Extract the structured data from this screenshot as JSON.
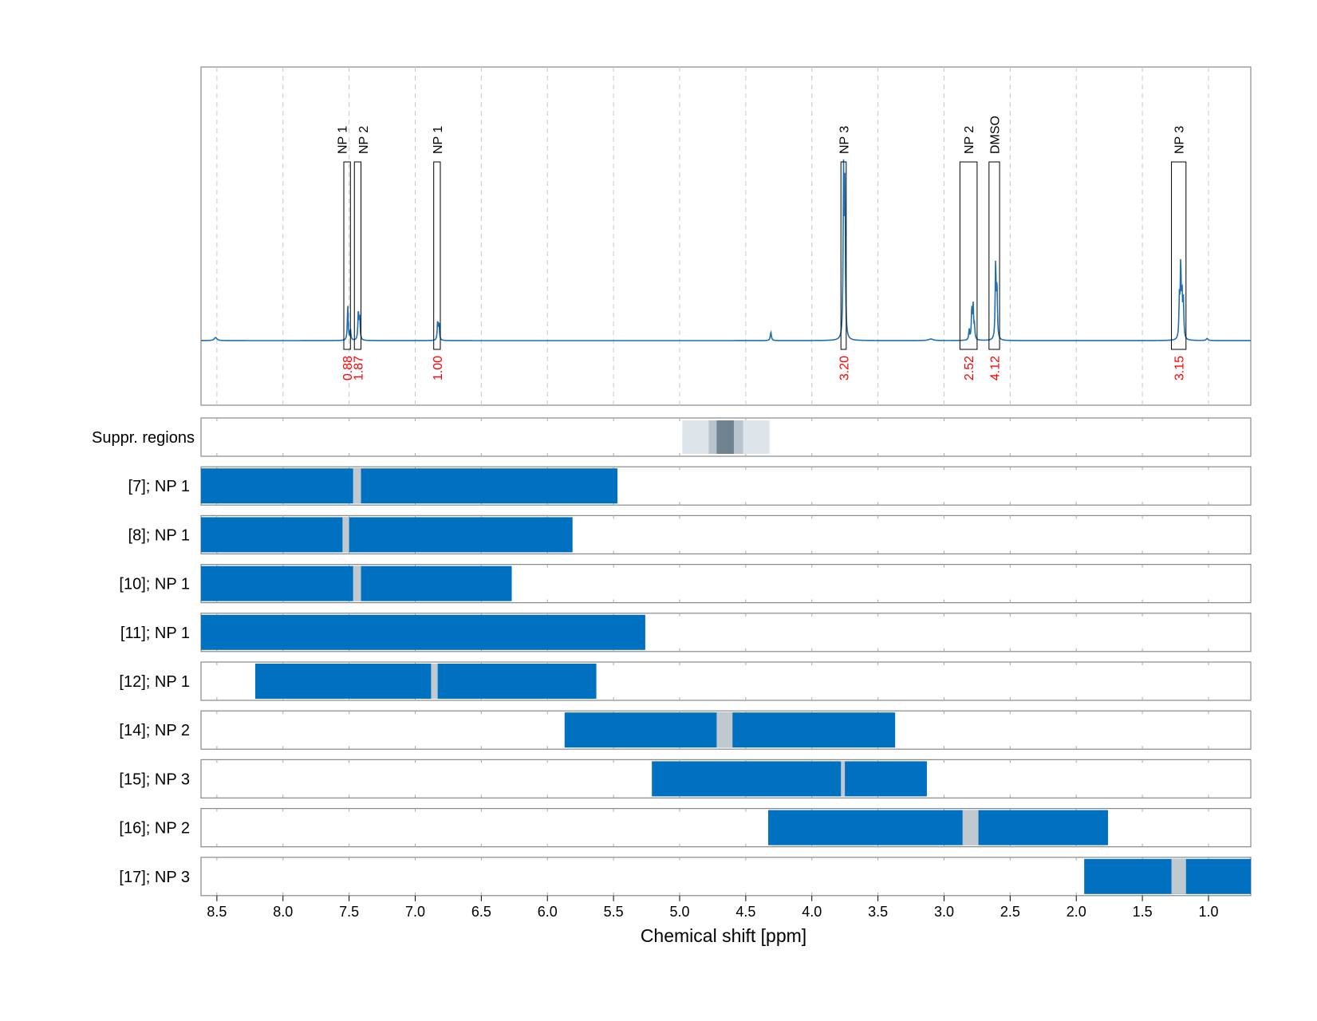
{
  "chart_data": {
    "type": "nmr_spectrum_with_range_bars",
    "xlabel": "Chemical shift [ppm]",
    "x_axis_reversed": true,
    "xlim": [
      8.62,
      0.68
    ],
    "x_ticks": [
      8.5,
      8.0,
      7.5,
      7.0,
      6.5,
      6.0,
      5.5,
      5.0,
      4.5,
      4.0,
      3.5,
      3.0,
      2.5,
      2.0,
      1.5,
      1.0
    ],
    "x_tick_labels": [
      "8.5",
      "8.0",
      "7.5",
      "7.0",
      "6.5",
      "6.0",
      "5.5",
      "5.0",
      "4.5",
      "4.0",
      "3.5",
      "3.0",
      "2.5",
      "2.0",
      "1.5",
      "1.0"
    ],
    "colors": {
      "spectrum": "#1f6fb2",
      "range_bar": "#0070c0",
      "gap": "#c0c8d0",
      "integral_text": "#ff0000",
      "suppr_light": "#dde4ea",
      "suppr_mid": "#b8c4ce",
      "suppr_dark": "#6f8391",
      "frame": "#888888",
      "grid": "#c8c8c8"
    },
    "spectrum": {
      "grid": "vertical dashed",
      "peaks": [
        {
          "ppm": 8.51,
          "height": 0.03,
          "width": 0.012
        },
        {
          "ppm": 7.51,
          "height": 0.33,
          "width": 0.004
        },
        {
          "ppm": 7.49,
          "height": 0.1,
          "width": 0.004
        },
        {
          "ppm": 7.43,
          "height": 0.28,
          "width": 0.004
        },
        {
          "ppm": 7.42,
          "height": 0.22,
          "width": 0.004
        },
        {
          "ppm": 6.83,
          "height": 0.18,
          "width": 0.004
        },
        {
          "ppm": 6.82,
          "height": 0.16,
          "width": 0.004
        },
        {
          "ppm": 4.31,
          "height": 0.08,
          "width": 0.005
        },
        {
          "ppm": 3.76,
          "height": 1.55,
          "width": 0.004
        },
        {
          "ppm": 3.75,
          "height": 1.45,
          "width": 0.004
        },
        {
          "ppm": 3.1,
          "height": 0.015,
          "width": 0.02
        },
        {
          "ppm": 2.81,
          "height": 0.1,
          "width": 0.004
        },
        {
          "ppm": 2.79,
          "height": 0.3,
          "width": 0.004
        },
        {
          "ppm": 2.78,
          "height": 0.32,
          "width": 0.004
        },
        {
          "ppm": 2.77,
          "height": 0.12,
          "width": 0.004
        },
        {
          "ppm": 2.61,
          "height": 0.73,
          "width": 0.004
        },
        {
          "ppm": 2.6,
          "height": 0.5,
          "width": 0.004
        },
        {
          "ppm": 1.22,
          "height": 0.38,
          "width": 0.004
        },
        {
          "ppm": 1.21,
          "height": 0.7,
          "width": 0.004
        },
        {
          "ppm": 1.2,
          "height": 0.4,
          "width": 0.004
        },
        {
          "ppm": 1.19,
          "height": 0.36,
          "width": 0.004
        },
        {
          "ppm": 1.01,
          "height": 0.02,
          "width": 0.008
        }
      ],
      "annotations": [
        {
          "label": "NP 1",
          "integral": "0.88",
          "start": 7.54,
          "end": 7.49,
          "label_nudge": -0.04
        },
        {
          "label": "NP 2",
          "integral": "1.87",
          "start": 7.46,
          "end": 7.41,
          "label_nudge": 0.04
        },
        {
          "label": "NP 1",
          "integral": "1.00",
          "start": 6.86,
          "end": 6.81,
          "label_nudge": 0
        },
        {
          "label": "NP 3",
          "integral": "3.20",
          "start": 3.78,
          "end": 3.74,
          "label_nudge": 0
        },
        {
          "label": "NP 2",
          "integral": "2.52",
          "start": 2.88,
          "end": 2.75,
          "label_nudge": 0
        },
        {
          "label": "DMSO",
          "integral": "4.12",
          "start": 2.66,
          "end": 2.58,
          "label_nudge": 0
        },
        {
          "label": "NP 3",
          "integral": "3.15",
          "start": 1.28,
          "end": 1.17,
          "label_nudge": 0
        }
      ]
    },
    "suppression_label": "Suppr. regions",
    "suppression_regions": [
      {
        "start": 4.98,
        "end": 4.32,
        "shade": "suppr_light"
      },
      {
        "start": 4.78,
        "end": 4.52,
        "shade": "suppr_mid"
      },
      {
        "start": 4.72,
        "end": 4.59,
        "shade": "suppr_dark"
      }
    ],
    "range_rows": [
      {
        "label": "[7]; NP 1",
        "start": 8.62,
        "end": 5.47,
        "gaps": [
          [
            7.47,
            7.41
          ]
        ]
      },
      {
        "label": "[8]; NP 1",
        "start": 8.62,
        "end": 5.81,
        "gaps": [
          [
            7.55,
            7.5
          ]
        ]
      },
      {
        "label": "[10]; NP 1",
        "start": 8.62,
        "end": 6.27,
        "gaps": [
          [
            7.47,
            7.41
          ]
        ]
      },
      {
        "label": "[11]; NP 1",
        "start": 8.62,
        "end": 5.26,
        "gaps": []
      },
      {
        "label": "[12]; NP 1",
        "start": 8.21,
        "end": 5.63,
        "gaps": [
          [
            6.88,
            6.83
          ]
        ]
      },
      {
        "label": "[14]; NP 2",
        "start": 5.87,
        "end": 3.37,
        "gaps": [
          [
            4.72,
            4.6
          ]
        ]
      },
      {
        "label": "[15]; NP 3",
        "start": 5.21,
        "end": 3.13,
        "gaps": [
          [
            3.78,
            3.75
          ]
        ]
      },
      {
        "label": "[16]; NP 2",
        "start": 4.33,
        "end": 1.76,
        "gaps": [
          [
            2.86,
            2.74
          ]
        ]
      },
      {
        "label": "[17]; NP 3",
        "start": 1.94,
        "end": 0.68,
        "gaps": [
          [
            1.28,
            1.17
          ]
        ]
      }
    ]
  }
}
